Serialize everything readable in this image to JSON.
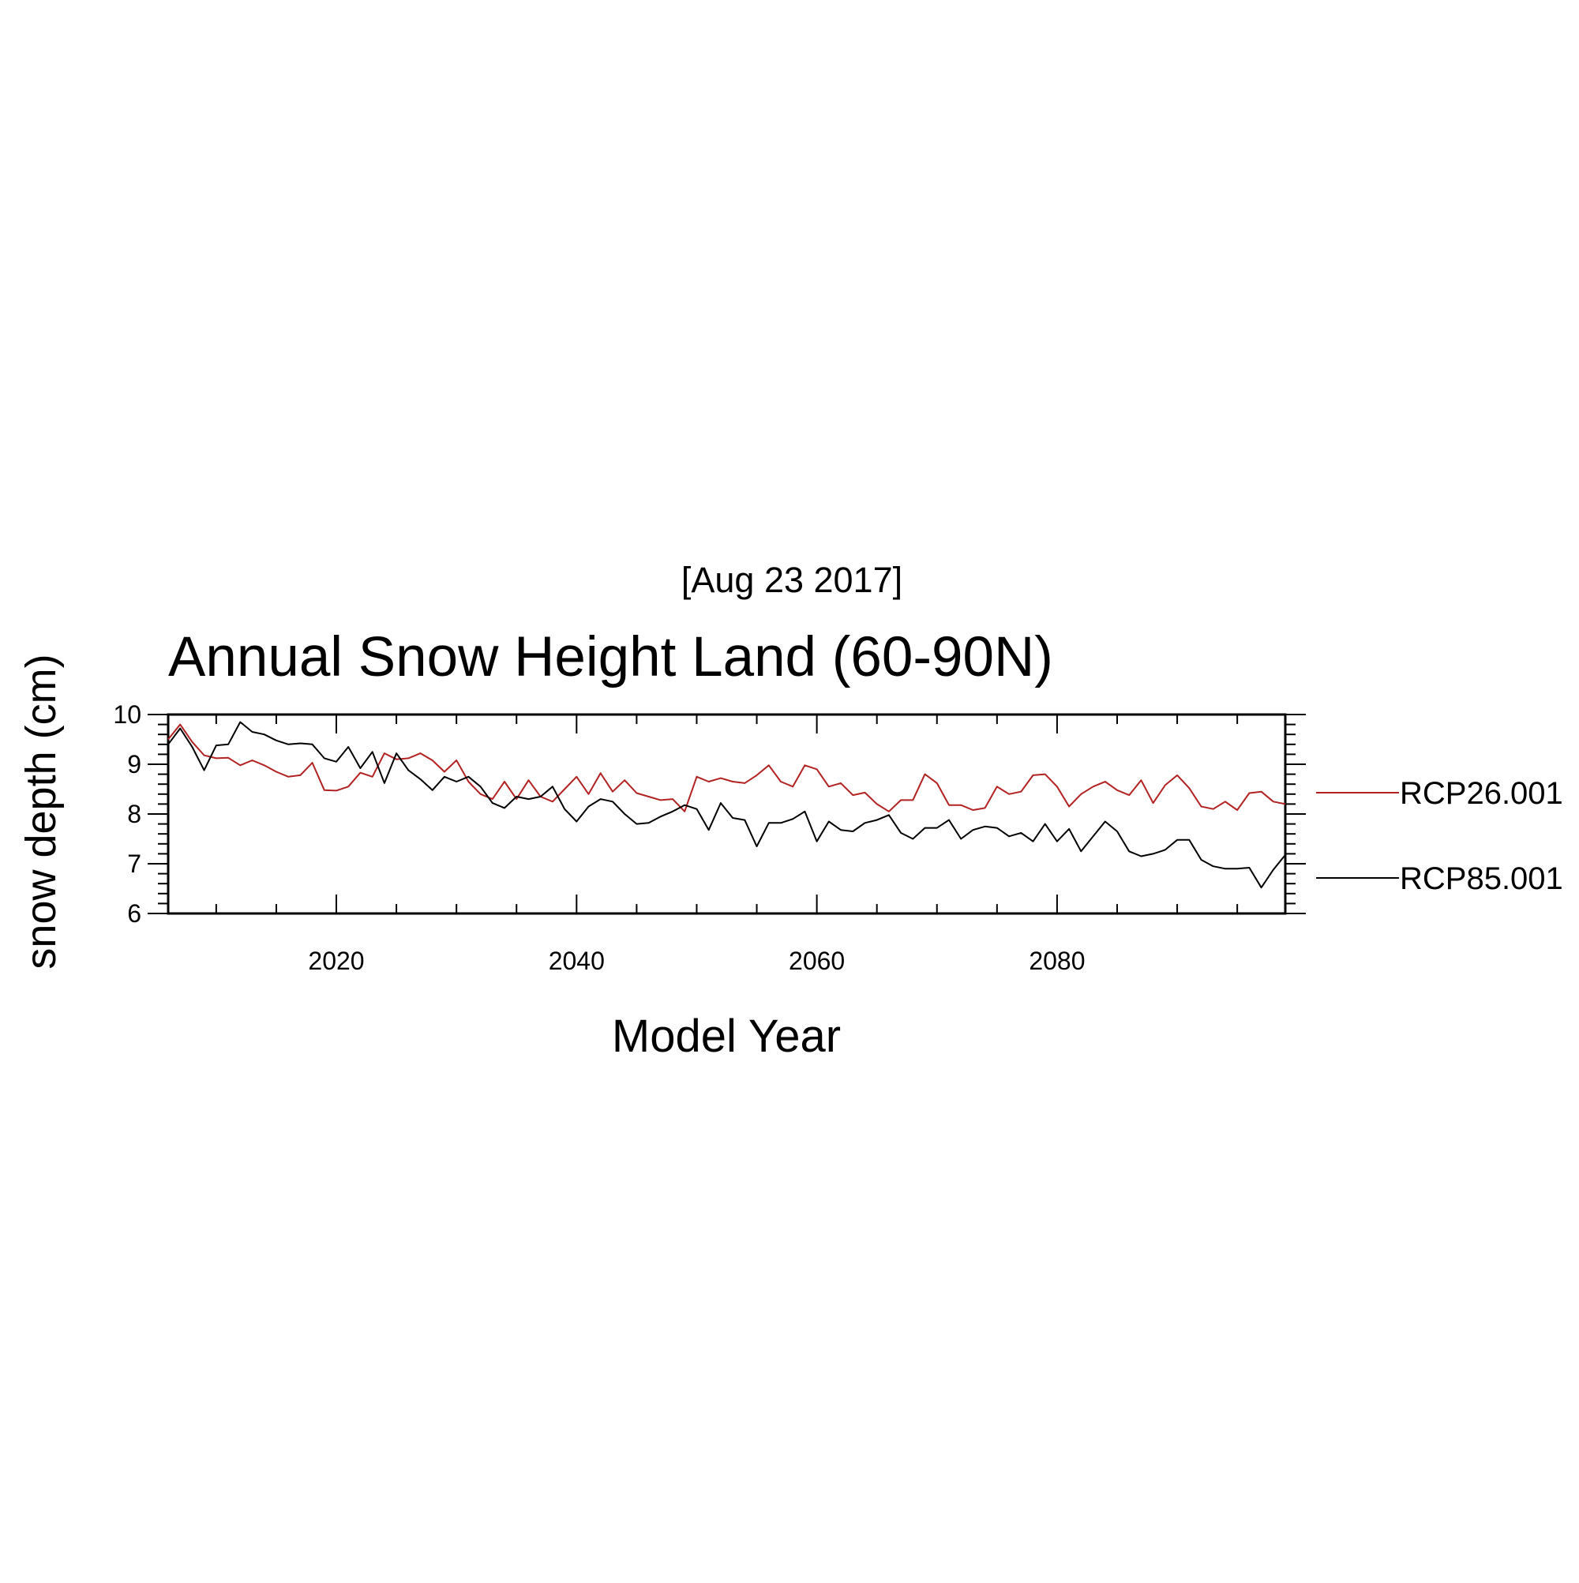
{
  "chart_data": {
    "type": "line",
    "title": "Annual Snow Height Land (60-90N)",
    "subtitle": "[Aug 23 2017]",
    "xlabel": "Model Year",
    "ylabel": "snow depth (cm)",
    "xlim": [
      2006,
      2099
    ],
    "ylim": [
      6,
      10
    ],
    "xticks": [
      2020,
      2040,
      2060,
      2080
    ],
    "yticks": [
      6,
      7,
      8,
      9,
      10
    ],
    "grid": false,
    "legend_position": "right",
    "x_start": 2006,
    "series": [
      {
        "name": "RCP26.001",
        "color": "#b22222",
        "values": [
          9.5,
          9.8,
          9.45,
          9.18,
          9.12,
          9.13,
          8.98,
          9.08,
          8.98,
          8.85,
          8.75,
          8.78,
          9.03,
          8.48,
          8.47,
          8.55,
          8.83,
          8.75,
          9.22,
          9.1,
          9.12,
          9.22,
          9.08,
          8.85,
          9.08,
          8.65,
          8.4,
          8.3,
          8.65,
          8.3,
          8.68,
          8.35,
          8.25,
          8.5,
          8.75,
          8.4,
          8.82,
          8.45,
          8.68,
          8.42,
          8.35,
          8.28,
          8.3,
          8.05,
          8.75,
          8.65,
          8.72,
          8.65,
          8.62,
          8.78,
          8.98,
          8.65,
          8.55,
          8.98,
          8.9,
          8.55,
          8.62,
          8.38,
          8.43,
          8.2,
          8.05,
          8.28,
          8.28,
          8.8,
          8.62,
          8.18,
          8.18,
          8.08,
          8.12,
          8.55,
          8.4,
          8.45,
          8.78,
          8.8,
          8.55,
          8.15,
          8.4,
          8.55,
          8.65,
          8.48,
          8.38,
          8.68,
          8.22,
          8.58,
          8.78,
          8.52,
          8.15,
          8.1,
          8.25,
          8.08,
          8.42,
          8.45,
          8.25,
          8.2
        ]
      },
      {
        "name": "RCP85.001",
        "color": "#000000",
        "values": [
          9.4,
          9.72,
          9.35,
          8.88,
          9.38,
          9.4,
          9.85,
          9.65,
          9.6,
          9.48,
          9.4,
          9.42,
          9.4,
          9.12,
          9.05,
          9.35,
          8.92,
          9.25,
          8.62,
          9.22,
          8.88,
          8.7,
          8.48,
          8.75,
          8.65,
          8.75,
          8.55,
          8.22,
          8.12,
          8.35,
          8.3,
          8.35,
          8.55,
          8.1,
          7.85,
          8.15,
          8.3,
          8.25,
          8.0,
          7.8,
          7.82,
          7.95,
          8.05,
          8.18,
          8.1,
          7.68,
          8.22,
          7.92,
          7.88,
          7.35,
          7.82,
          7.82,
          7.9,
          8.05,
          7.45,
          7.85,
          7.68,
          7.65,
          7.82,
          7.88,
          7.98,
          7.62,
          7.5,
          7.72,
          7.72,
          7.88,
          7.5,
          7.68,
          7.75,
          7.72,
          7.55,
          7.62,
          7.45,
          7.8,
          7.45,
          7.7,
          7.25,
          7.55,
          7.85,
          7.65,
          7.25,
          7.15,
          7.2,
          7.28,
          7.48,
          7.48,
          7.08,
          6.95,
          6.9,
          6.9,
          6.92,
          6.52,
          6.88,
          7.18
        ]
      }
    ]
  }
}
